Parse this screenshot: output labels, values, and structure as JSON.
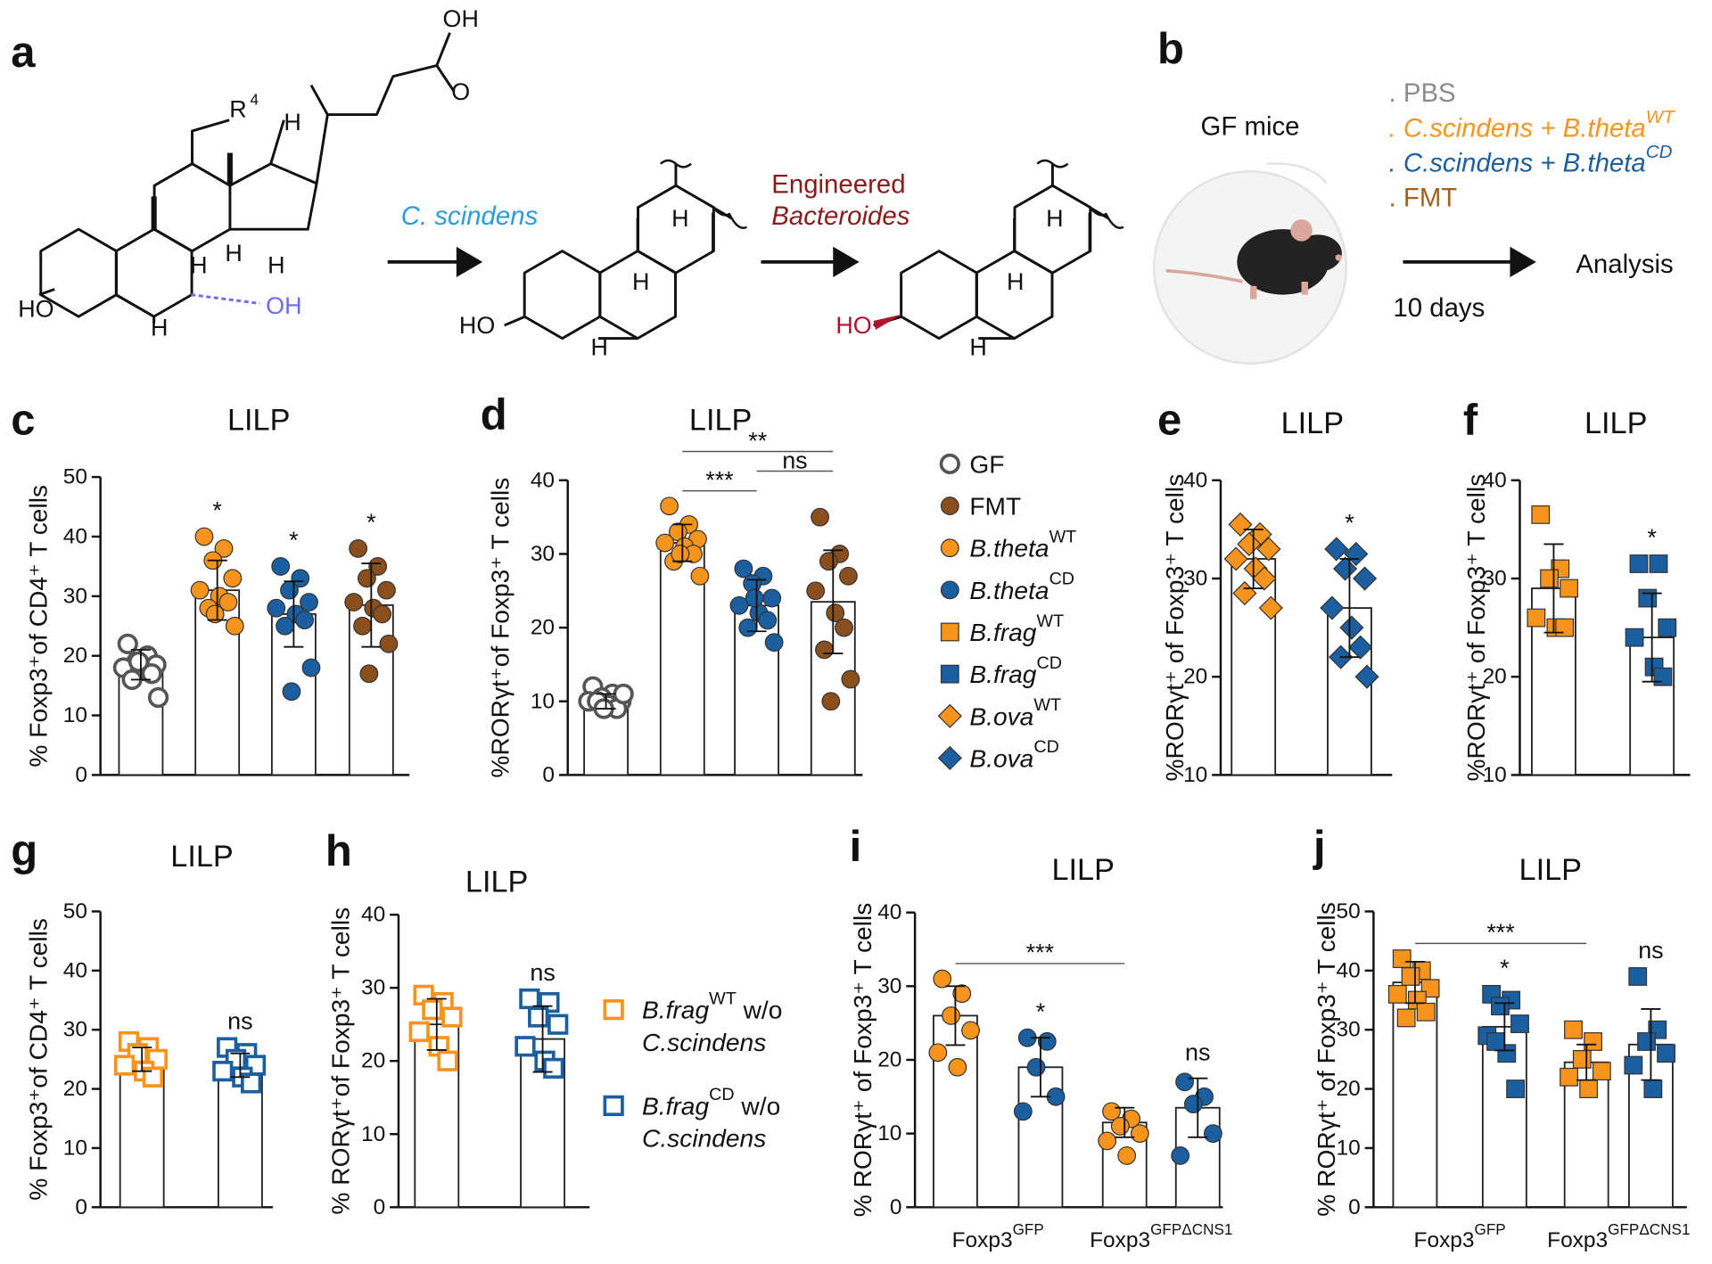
{
  "panels": {
    "a": {
      "letter": "a",
      "labels": [
        "OH",
        "O",
        "R",
        "4",
        "H",
        "H",
        "H",
        "H",
        "HO",
        "H",
        "OH",
        "C. scindens",
        "H",
        "H",
        "HO",
        "H",
        "Engineered",
        "Bacteroides",
        "H",
        "H",
        "HO",
        "H"
      ]
    },
    "b": {
      "letter": "b",
      "mice": "GF mice",
      "items": [
        {
          "text": ". PBS",
          "color": "#8c8c8c"
        },
        {
          "text": ". C.scindens + B.theta",
          "sup": "WT",
          "color": "#f7941d"
        },
        {
          "text": ". C.scindens + B.theta",
          "sup": "CD",
          "color": "#1b5fa0"
        },
        {
          "text": ". FMT",
          "color": "#a0621f"
        }
      ],
      "arrow_top": "Analysis",
      "arrow_bottom": "10 days"
    }
  },
  "legends": {
    "d": [
      {
        "label": "GF",
        "marker": "circle",
        "color": "#555555",
        "filled": false,
        "italic": false
      },
      {
        "label": "FMT",
        "marker": "circle",
        "color": "#8b4f1d",
        "filled": true,
        "italic": false
      },
      {
        "label": "B.theta",
        "sup": "WT",
        "marker": "circle",
        "color": "#f7941d",
        "filled": true,
        "italic": true
      },
      {
        "label": "B.theta",
        "sup": "CD",
        "marker": "circle",
        "color": "#1b5fa0",
        "filled": true,
        "italic": true
      },
      {
        "label": "B.frag",
        "sup": "WT",
        "marker": "square",
        "color": "#f7941d",
        "filled": true,
        "italic": true
      },
      {
        "label": "B.frag",
        "sup": "CD",
        "marker": "square",
        "color": "#1b5fa0",
        "filled": true,
        "italic": true
      },
      {
        "label": "B.ova",
        "sup": "WT",
        "marker": "diamond",
        "color": "#f7941d",
        "filled": true,
        "italic": true
      },
      {
        "label": "B.ova",
        "sup": "CD",
        "marker": "diamond",
        "color": "#1b5fa0",
        "filled": true,
        "italic": true
      }
    ],
    "h": [
      {
        "label": "B.frag",
        "sup": "WT",
        "rest": " w/o",
        "line2": "C.scindens",
        "marker": "square",
        "color": "#f7941d",
        "filled": false
      },
      {
        "label": "B.frag",
        "sup": "CD",
        "rest": " w/o",
        "line2": "C.scindens",
        "marker": "square",
        "color": "#1b5fa0",
        "filled": false
      }
    ]
  },
  "chart_data": [
    {
      "letter": "c",
      "type": "bar",
      "title": "LILP",
      "ylabel": "% Foxp3⁺of CD4⁺ T cells",
      "ylim": [
        0,
        50
      ],
      "yticks": [
        0,
        10,
        20,
        30,
        40,
        50
      ],
      "marker": "circle",
      "colors": [
        "#555555",
        "#f7941d",
        "#1b5fa0",
        "#8b4f1d"
      ],
      "filled": [
        false,
        true,
        true,
        true
      ],
      "values": [
        18.5,
        31,
        27,
        28.5
      ],
      "errors": [
        2.5,
        5,
        5.5,
        7
      ],
      "points": [
        [
          22,
          20,
          19,
          18.5,
          18,
          17.5,
          17,
          16,
          13,
          19
        ],
        [
          40,
          38,
          36,
          33,
          31,
          30,
          29,
          28,
          25,
          27
        ],
        [
          35,
          33,
          31,
          29,
          28,
          27,
          26,
          25,
          18,
          14
        ],
        [
          38,
          35,
          33,
          31,
          29,
          28,
          27,
          25,
          22,
          17
        ]
      ],
      "annotations": [
        {
          "text": "*",
          "bar": 1
        },
        {
          "text": "*",
          "bar": 2
        },
        {
          "text": "*",
          "bar": 3
        }
      ]
    },
    {
      "letter": "d",
      "type": "bar",
      "title": "LILP",
      "ylabel": "%RORγt⁺of Foxp3⁺ T cells",
      "ylim": [
        0,
        40
      ],
      "yticks": [
        0,
        10,
        20,
        30,
        40
      ],
      "marker": "circle",
      "colors": [
        "#555555",
        "#f7941d",
        "#1b5fa0",
        "#8b4f1d"
      ],
      "filled": [
        false,
        true,
        true,
        true
      ],
      "values": [
        10,
        31.5,
        23,
        23.5
      ],
      "errors": [
        1,
        2.5,
        3.5,
        7
      ],
      "points": [
        [
          12,
          11,
          10.5,
          10,
          10,
          9.5,
          9,
          10,
          11,
          9
        ],
        [
          36.5,
          34,
          33,
          32,
          31.5,
          31,
          30,
          29,
          27,
          30
        ],
        [
          28,
          27,
          26,
          24,
          23,
          22,
          21,
          20,
          18,
          24
        ],
        [
          35,
          30,
          29,
          27,
          25,
          22,
          20,
          17,
          13,
          10
        ]
      ],
      "brackets": [
        {
          "text": "***",
          "from": 1,
          "to": 2
        },
        {
          "text": "ns",
          "from": 2,
          "to": 3
        },
        {
          "text": "**",
          "from": 1,
          "to": 3
        }
      ]
    },
    {
      "letter": "e",
      "type": "bar",
      "title": "LILP",
      "ylabel": "%RORγt⁺ of Foxp3⁺ T cells",
      "ylim": [
        10,
        40
      ],
      "yticks": [
        10,
        20,
        30,
        40
      ],
      "marker": "diamond",
      "colors": [
        "#f7941d",
        "#1b5fa0"
      ],
      "filled": [
        true,
        true
      ],
      "values": [
        32,
        27
      ],
      "errors": [
        3,
        5
      ],
      "points": [
        [
          35.5,
          34.5,
          33.5,
          33,
          32,
          31,
          30,
          28.5,
          27
        ],
        [
          33,
          32.5,
          31,
          30,
          27,
          25,
          23,
          22,
          20
        ]
      ],
      "annotations": [
        {
          "text": "*",
          "bar": 1
        }
      ]
    },
    {
      "letter": "f",
      "type": "bar",
      "title": "LILP",
      "ylabel": "%RORγt⁺ of Foxp3⁺ T cells",
      "ylim": [
        10,
        40
      ],
      "yticks": [
        10,
        20,
        30,
        40
      ],
      "marker": "square",
      "colors": [
        "#f7941d",
        "#1b5fa0"
      ],
      "filled": [
        true,
        true
      ],
      "values": [
        29,
        24
      ],
      "errors": [
        4.5,
        4.5
      ],
      "points": [
        [
          36.5,
          31,
          30,
          29,
          26,
          25,
          25
        ],
        [
          31.5,
          31.5,
          28,
          25,
          24,
          21,
          20
        ]
      ],
      "annotations": [
        {
          "text": "*",
          "bar": 1
        }
      ]
    },
    {
      "letter": "g",
      "type": "bar",
      "title": "LILP",
      "ylabel": "% Foxp3⁺of CD4⁺ T cells",
      "ylim": [
        0,
        50
      ],
      "yticks": [
        0,
        10,
        20,
        30,
        40,
        50
      ],
      "marker": "square",
      "colors": [
        "#f7941d",
        "#1b5fa0"
      ],
      "filled": [
        false,
        false
      ],
      "values": [
        25,
        24
      ],
      "errors": [
        2,
        2
      ],
      "points": [
        [
          28,
          27,
          26,
          25,
          24,
          23,
          22
        ],
        [
          27,
          26,
          25,
          24,
          23,
          22,
          21
        ]
      ],
      "annotations": [
        {
          "text": "ns",
          "bar": 1
        }
      ]
    },
    {
      "letter": "h",
      "type": "bar",
      "title": "LILP",
      "ylabel": "% RORγt⁺of Foxp3⁺ T cells",
      "ylim": [
        0,
        40
      ],
      "yticks": [
        0,
        10,
        20,
        30,
        40
      ],
      "marker": "square",
      "colors": [
        "#f7941d",
        "#1b5fa0"
      ],
      "filled": [
        false,
        false
      ],
      "values": [
        25,
        23
      ],
      "errors": [
        3.5,
        4.5
      ],
      "points": [
        [
          29,
          28,
          27,
          26,
          24,
          22,
          20
        ],
        [
          28.5,
          28,
          26,
          25,
          22,
          20,
          19
        ]
      ],
      "annotations": [
        {
          "text": "ns",
          "bar": 1
        }
      ]
    },
    {
      "letter": "i",
      "type": "bar",
      "title": "LILP",
      "ylabel": "% RORγt⁺ of Foxp3⁺ T cells",
      "ylim": [
        0,
        40
      ],
      "yticks": [
        0,
        10,
        20,
        30,
        40
      ],
      "marker": "circle",
      "colors": [
        "#f7941d",
        "#1b5fa0",
        "#f7941d",
        "#1b5fa0"
      ],
      "filled": [
        true,
        true,
        true,
        true
      ],
      "values": [
        26,
        19,
        11.5,
        13.5
      ],
      "errors": [
        4,
        4,
        2,
        4
      ],
      "points": [
        [
          31,
          29,
          26,
          24,
          21,
          19
        ],
        [
          23,
          22.5,
          19,
          15,
          13
        ],
        [
          13,
          12,
          11,
          10,
          9,
          7
        ],
        [
          17,
          15,
          14,
          10,
          7
        ]
      ],
      "annotations": [
        {
          "text": "*",
          "bar": 1
        },
        {
          "text": "ns",
          "bar": 3
        }
      ],
      "brackets": [
        {
          "text": "***",
          "from": 0,
          "to": 2
        }
      ],
      "group_labels": [
        {
          "text": "Foxp3",
          "sup": "GFP",
          "bars": [
            0,
            1
          ]
        },
        {
          "text": "Foxp3",
          "sup": "GFPΔCNS1",
          "bars": [
            2,
            3
          ]
        }
      ]
    },
    {
      "letter": "j",
      "type": "bar",
      "title": "LILP",
      "ylabel": "% RORγt⁺ of Foxp3⁺ T cells",
      "ylim": [
        0,
        50
      ],
      "yticks": [
        0,
        10,
        20,
        30,
        40,
        50
      ],
      "marker": "square",
      "colors": [
        "#f7941d",
        "#1b5fa0",
        "#f7941d",
        "#1b5fa0"
      ],
      "filled": [
        true,
        true,
        true,
        true
      ],
      "values": [
        38,
        30.5,
        24.5,
        27.5
      ],
      "errors": [
        3.5,
        4,
        3,
        6
      ],
      "points": [
        [
          42,
          40,
          39,
          37,
          36,
          35,
          33,
          32
        ],
        [
          36,
          35,
          34,
          31,
          29,
          26,
          20,
          28
        ],
        [
          30,
          28,
          25,
          23,
          22,
          20
        ],
        [
          39,
          30,
          28,
          26,
          24,
          20
        ]
      ],
      "annotations": [
        {
          "text": "*",
          "bar": 1
        },
        {
          "text": "ns",
          "bar": 3
        }
      ],
      "brackets": [
        {
          "text": "***",
          "from": 0,
          "to": 2
        }
      ],
      "group_labels": [
        {
          "text": "Foxp3",
          "sup": "GFP",
          "bars": [
            0,
            1
          ]
        },
        {
          "text": "Foxp3",
          "sup": "GFPΔCNS1",
          "bars": [
            2,
            3
          ]
        }
      ]
    }
  ]
}
